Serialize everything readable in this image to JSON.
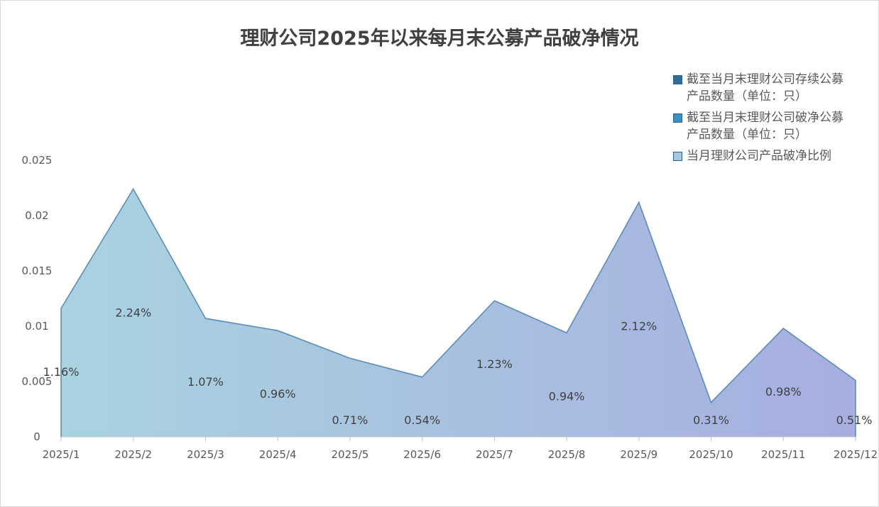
{
  "chart_data": {
    "type": "area",
    "title": "理财公司2025年以来每月末公募产品破净情况",
    "categories": [
      "2025/1",
      "2025/2",
      "2025/3",
      "2025/4",
      "2025/5",
      "2025/6",
      "2025/7",
      "2025/8",
      "2025/9",
      "2025/10",
      "2025/11",
      "2025/12"
    ],
    "series": [
      {
        "name": "当月理财公司产品破净比例",
        "values": [
          0.0116,
          0.0224,
          0.0107,
          0.0096,
          0.0071,
          0.0054,
          0.0123,
          0.0094,
          0.0212,
          0.0031,
          0.0098,
          0.0051
        ],
        "data_labels": [
          "1.16%",
          "2.24%",
          "1.07%",
          "0.96%",
          "0.71%",
          "0.54%",
          "1.23%",
          "0.94%",
          "2.12%",
          "0.31%",
          "0.98%",
          "0.51%"
        ]
      }
    ],
    "legend": [
      {
        "name": "截至当月末理财公司存续公募产品数量（单位：只）",
        "line1": "截至当月末理财公司存续公募",
        "line2": "产品数量（单位：只）",
        "color": "#2f6e99"
      },
      {
        "name": "截至当月末理财公司破净公募产品数量（单位：只）",
        "line1": "截至当月末理财公司破净公募",
        "line2": "产品数量（单位：只）",
        "color": "#3b8fc4"
      },
      {
        "name": "当月理财公司产品破净比例",
        "line1": "当月理财公司产品破净比例",
        "line2": "",
        "color": "#a7c6de"
      }
    ],
    "legend_position": "top-right",
    "y_ticks": [
      "0",
      "0.005",
      "0.01",
      "0.015",
      "0.02",
      "0.025"
    ],
    "ylim": [
      0,
      0.025
    ],
    "grid": false,
    "colors": {
      "fill_start": "#a9d3e0",
      "fill_end": "#a7aee0",
      "line": "#5b8db8",
      "axis": "#bfbfbf"
    }
  }
}
